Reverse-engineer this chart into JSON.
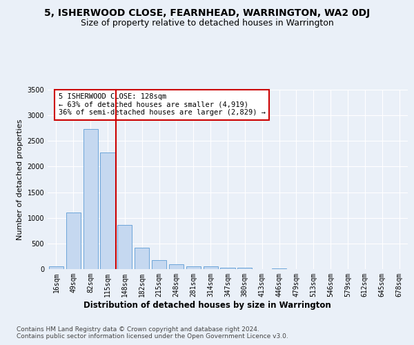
{
  "title": "5, ISHERWOOD CLOSE, FEARNHEAD, WARRINGTON, WA2 0DJ",
  "subtitle": "Size of property relative to detached houses in Warrington",
  "xlabel": "Distribution of detached houses by size in Warrington",
  "ylabel": "Number of detached properties",
  "categories": [
    "16sqm",
    "49sqm",
    "82sqm",
    "115sqm",
    "148sqm",
    "182sqm",
    "215sqm",
    "248sqm",
    "281sqm",
    "314sqm",
    "347sqm",
    "380sqm",
    "413sqm",
    "446sqm",
    "479sqm",
    "513sqm",
    "546sqm",
    "579sqm",
    "612sqm",
    "645sqm",
    "678sqm"
  ],
  "values": [
    50,
    1100,
    2730,
    2280,
    860,
    420,
    175,
    90,
    60,
    50,
    30,
    25,
    5,
    20,
    5,
    0,
    0,
    0,
    0,
    0,
    0
  ],
  "bar_color": "#c5d8f0",
  "bar_edge_color": "#5b9bd5",
  "vline_x": 3.5,
  "vline_color": "#cc0000",
  "annotation_text": "5 ISHERWOOD CLOSE: 128sqm\n← 63% of detached houses are smaller (4,919)\n36% of semi-detached houses are larger (2,829) →",
  "annotation_box_color": "#ffffff",
  "annotation_box_edge": "#cc0000",
  "footer_text": "Contains HM Land Registry data © Crown copyright and database right 2024.\nContains public sector information licensed under the Open Government Licence v3.0.",
  "bg_color": "#eaf0f8",
  "plot_bg_color": "#eaf0f8",
  "ylim": [
    0,
    3500
  ],
  "yticks": [
    0,
    500,
    1000,
    1500,
    2000,
    2500,
    3000,
    3500
  ],
  "title_fontsize": 10,
  "subtitle_fontsize": 9,
  "xlabel_fontsize": 8.5,
  "ylabel_fontsize": 8,
  "tick_fontsize": 7,
  "footer_fontsize": 6.5,
  "annotation_fontsize": 7.5
}
